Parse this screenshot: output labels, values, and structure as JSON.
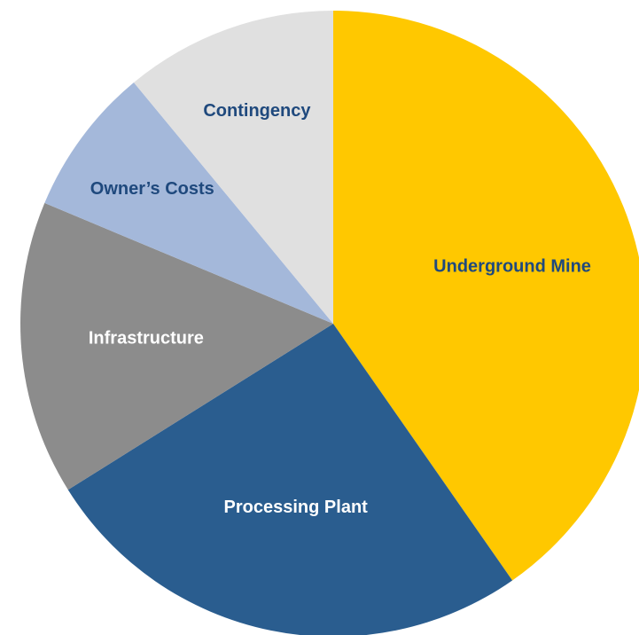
{
  "chart_data": {
    "type": "pie",
    "categories": [
      "Underground Mine",
      "Processing Plant",
      "Infrastructure",
      "Owner’s Costs",
      "Contingency"
    ],
    "values": [
      40.3,
      25.8,
      15.2,
      7.7,
      11.0
    ],
    "colors": [
      "#ffc800",
      "#2a5d8f",
      "#8c8c8c",
      "#a4b8da",
      "#e0e0e0"
    ],
    "label_colors": [
      "#1f497d",
      "#ffffff",
      "#ffffff",
      "#1f497d",
      "#1f497d"
    ],
    "start_angle": 0,
    "direction": "clockwise"
  }
}
